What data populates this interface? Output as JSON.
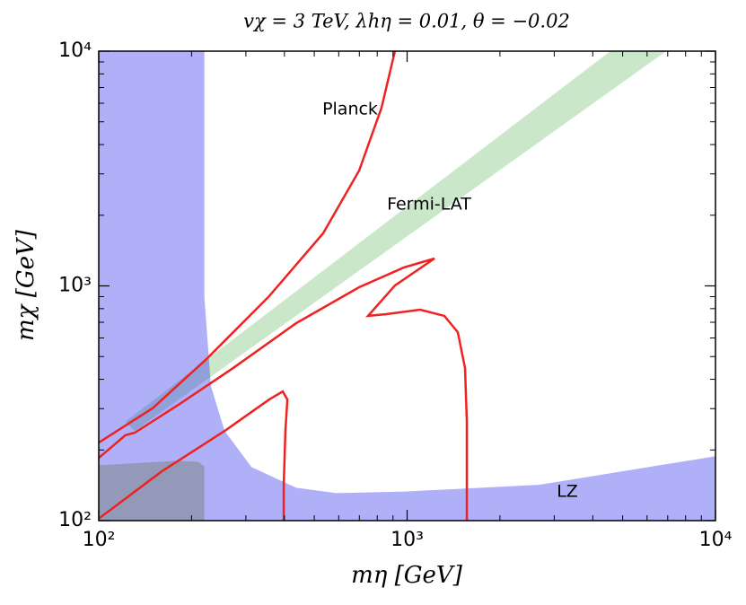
{
  "chart_data": {
    "type": "contour",
    "title": "vχ = 3 TeV,  λhη = 0.01,  θ = −0.02",
    "x_label": "mη [GeV]",
    "y_label": "mχ [GeV]",
    "log_x": true,
    "log_y": true,
    "xlim": [
      100,
      10000
    ],
    "ylim": [
      100,
      10000
    ],
    "xticks": [
      {
        "value": 100,
        "label": "10²"
      },
      {
        "value": 1000,
        "label": "10³"
      },
      {
        "value": 10000,
        "label": "10⁴"
      }
    ],
    "yticks": [
      {
        "value": 100,
        "label": "10²"
      },
      {
        "value": 1000,
        "label": "10³"
      },
      {
        "value": 10000,
        "label": "10⁴"
      }
    ],
    "xminor": [
      200,
      300,
      400,
      500,
      600,
      700,
      800,
      900,
      2000,
      3000,
      4000,
      5000,
      6000,
      7000,
      8000,
      9000
    ],
    "yminor": [
      200,
      300,
      400,
      500,
      600,
      700,
      800,
      900,
      2000,
      3000,
      4000,
      5000,
      6000,
      7000,
      8000,
      9000
    ],
    "regions": [
      {
        "color": "#2ca02c",
        "opacity": 0.25,
        "x": [
          122,
          4560,
          6920,
          131
        ],
        "y": [
          264,
          10000,
          10000,
          241
        ]
      },
      {
        "color": "#3030f0",
        "opacity": 0.38,
        "x": [
          100,
          100,
          220,
          220,
          231,
          256,
          313,
          437,
          590,
          977,
          2670,
          10000,
          10000
        ],
        "y": [
          100,
          10000,
          10000,
          900,
          375,
          241,
          169,
          138,
          131,
          133,
          142,
          188,
          100
        ]
      },
      {
        "color": "#6a7a5a",
        "opacity": 0.4,
        "x": [
          100,
          100,
          180,
          210,
          220,
          220
        ],
        "y": [
          100,
          172,
          180,
          178,
          170,
          100
        ]
      }
    ],
    "series": [
      {
        "color": "#ee2222",
        "x": [
          100,
          149.5,
          223.6,
          357,
          534,
          699,
          826,
          913
        ],
        "values": [
          215,
          301,
          488,
          904,
          1674,
          3100,
          5740,
          10000
        ]
      },
      {
        "color": "#ee2222",
        "x": [
          100,
          122,
          131,
          183,
          273,
          437,
          699,
          977,
          1227,
          1179,
          913,
          747,
          855,
          1102,
          1321,
          1460,
          1541,
          1562,
          1562
        ],
        "values": [
          185,
          231,
          237,
          314,
          447,
          694,
          987,
          1198,
          1308,
          1263,
          1004,
          745,
          758,
          792,
          745,
          635,
          447,
          264,
          100
        ]
      },
      {
        "color": "#ee2222",
        "x": [
          100,
          160,
          256,
          357,
          395,
          409,
          403,
          398,
          398
        ],
        "values": [
          102,
          162,
          241,
          328,
          355,
          328,
          241,
          142,
          100
        ]
      }
    ],
    "annotations": [
      "Planck",
      "Fermi-LAT",
      "LZ"
    ]
  }
}
